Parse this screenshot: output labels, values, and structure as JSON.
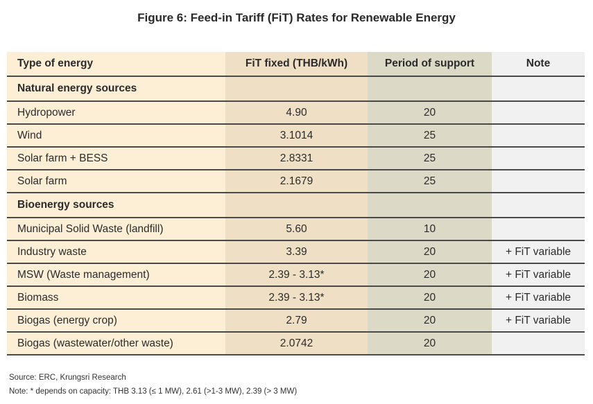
{
  "title": "Figure 6: Feed-in Tariff (FiT) Rates for Renewable Energy",
  "colors": {
    "col_type": "#fcefd6",
    "col_fit": "#efdfc4",
    "col_period": "#dcd9c7",
    "col_note": "#f1f1f1"
  },
  "table": {
    "headers": [
      "Type of energy",
      "FiT fixed (THB/kWh)",
      "Period of support",
      "Note"
    ],
    "rows": [
      {
        "type": "Natural energy sources",
        "fit": "",
        "period": "",
        "note": "",
        "section": true
      },
      {
        "type": "Hydropower",
        "fit": "4.90",
        "period": "20",
        "note": ""
      },
      {
        "type": "Wind",
        "fit": "3.1014",
        "period": "25",
        "note": ""
      },
      {
        "type": "Solar farm + BESS",
        "fit": "2.8331",
        "period": "25",
        "note": ""
      },
      {
        "type": "Solar farm",
        "fit": "2.1679",
        "period": "25",
        "note": ""
      },
      {
        "type": "Bioenergy sources",
        "fit": "",
        "period": "",
        "note": "",
        "section": true
      },
      {
        "type": "Municipal Solid Waste (landfill)",
        "fit": "5.60",
        "period": "10",
        "note": ""
      },
      {
        "type": "Industry waste",
        "fit": "3.39",
        "period": "20",
        "note": "+ FiT variable"
      },
      {
        "type": "MSW (Waste management)",
        "fit": "2.39 - 3.13*",
        "period": "20",
        "note": "+ FiT variable"
      },
      {
        "type": "Biomass",
        "fit": "2.39 - 3.13*",
        "period": "20",
        "note": "+ FiT variable"
      },
      {
        "type": "Biogas (energy crop)",
        "fit": "2.79",
        "period": "20",
        "note": "+ FiT variable"
      },
      {
        "type": "Biogas (wastewater/other waste)",
        "fit": "2.0742",
        "period": "20",
        "note": ""
      }
    ]
  },
  "source": "Source: ERC, Krungsri Research",
  "note": "Note: * depends on capacity: THB 3.13 (≤ 1 MW), 2.61 (>1-3 MW), 2.39 (> 3 MW)"
}
